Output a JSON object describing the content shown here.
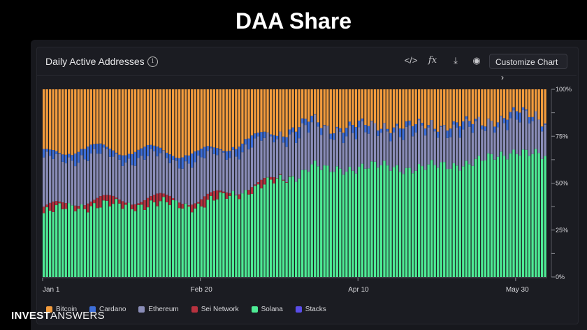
{
  "headline": "DAA Share",
  "card": {
    "title": "Daily Active Addresses",
    "info_icon": "info-icon",
    "tools": [
      "code-icon",
      "formula-icon",
      "download-icon",
      "camera-icon"
    ],
    "tool_glyphs": [
      "</>",
      "fx",
      "⤓",
      "◉"
    ],
    "customize_label": "Customize Chart",
    "customize_chevron": "›"
  },
  "logo": {
    "bold": "INVEST",
    "thin": "ANSWERS"
  },
  "chart_data": {
    "type": "bar",
    "stacked": true,
    "normalized": true,
    "title": "Daily Active Addresses",
    "x_ticks": [
      "Jan 1",
      "Feb 20",
      "Apr 10",
      "May 30"
    ],
    "y_ticks": [
      "0%",
      "25%",
      "50%",
      "75%",
      "100%"
    ],
    "ylim": [
      0,
      100
    ],
    "grid": false,
    "legend_position": "bottom",
    "series_order": [
      "Solana",
      "Sei Network",
      "Ethereum",
      "Cardano",
      "Bitcoin",
      "Stacks"
    ],
    "colors": {
      "Bitcoin": "#f39c3d",
      "Cardano": "#3d6ed8",
      "Ethereum": "#8a8db8",
      "Sei Network": "#b8323f",
      "Solana": "#4eeb95",
      "Stacks": "#5a4de8"
    },
    "legend": [
      "Bitcoin",
      "Cardano",
      "Ethereum",
      "Sei Network",
      "Solana",
      "Stacks"
    ],
    "start_date": "Jan 1",
    "days": 160,
    "series": [
      {
        "name": "Solana",
        "points": [
          [
            0,
            34
          ],
          [
            10,
            38
          ],
          [
            20,
            38
          ],
          [
            40,
            39
          ],
          [
            49,
            38
          ],
          [
            60,
            44
          ],
          [
            80,
            54
          ],
          [
            85,
            60
          ],
          [
            90,
            56
          ],
          [
            100,
            59
          ],
          [
            120,
            58
          ],
          [
            140,
            62
          ],
          [
            150,
            68
          ],
          [
            159,
            63
          ]
        ]
      },
      {
        "name": "Sei Network",
        "points": [
          [
            0,
            2
          ],
          [
            20,
            3
          ],
          [
            40,
            3
          ],
          [
            60,
            2
          ],
          [
            70,
            1
          ],
          [
            80,
            0
          ],
          [
            159,
            0
          ]
        ]
      },
      {
        "name": "Ethereum",
        "points": [
          [
            0,
            25
          ],
          [
            20,
            23
          ],
          [
            40,
            21
          ],
          [
            60,
            21
          ],
          [
            75,
            22
          ],
          [
            80,
            22
          ],
          [
            100,
            19
          ],
          [
            120,
            20
          ],
          [
            140,
            18
          ],
          [
            159,
            18
          ]
        ]
      },
      {
        "name": "Cardano",
        "points": [
          [
            0,
            4
          ],
          [
            40,
            4
          ],
          [
            80,
            3
          ],
          [
            159,
            2
          ]
        ]
      },
      {
        "name": "Stacks",
        "points": [
          [
            0,
            0
          ],
          [
            159,
            0
          ]
        ]
      }
    ]
  }
}
